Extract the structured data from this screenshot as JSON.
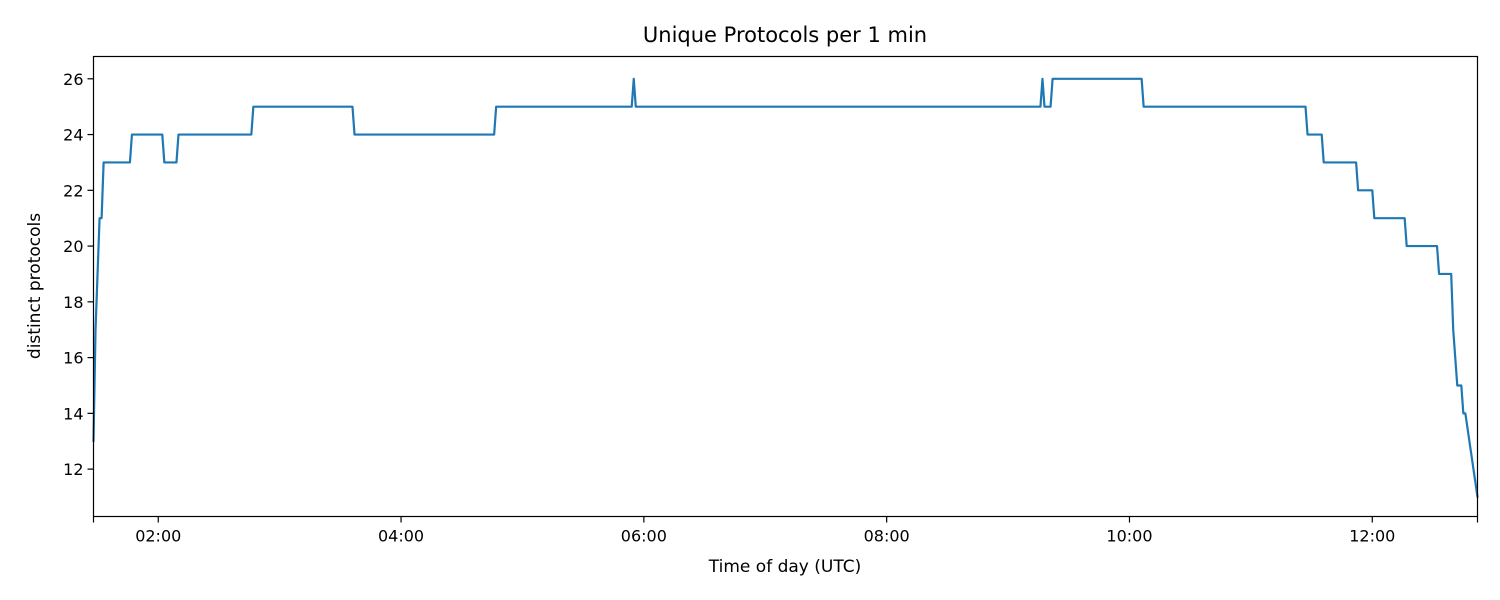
{
  "chart_data": {
    "type": "line",
    "title": "Unique Protocols per 1 min",
    "xlabel": "Time of day (UTC)",
    "ylabel": "distinct protocols",
    "x_unit": "time of day (UTC)",
    "xlim": [
      "01:28",
      "12:52"
    ],
    "ylim": [
      10.3,
      26.8
    ],
    "x_ticks": [
      "01:28",
      "02:00",
      "04:00",
      "06:00",
      "08:00",
      "10:00",
      "12:00",
      "12:52"
    ],
    "x_tick_labels": [
      "",
      "02:00",
      "04:00",
      "06:00",
      "08:00",
      "10:00",
      "12:00",
      ""
    ],
    "y_ticks": [
      12,
      14,
      16,
      18,
      20,
      22,
      24,
      26
    ],
    "y_tick_labels": [
      "12",
      "14",
      "16",
      "18",
      "20",
      "22",
      "24",
      "26"
    ],
    "grid": false,
    "colors": {
      "series": "#1f77b4",
      "axes": "#000000",
      "background": "#ffffff"
    },
    "series": [
      {
        "x": [
          "01:28",
          "01:29",
          "01:30",
          "01:31",
          "01:32",
          "01:33",
          "01:34",
          "01:35",
          "01:46",
          "01:47",
          "02:02",
          "02:03",
          "02:09",
          "02:10",
          "02:46",
          "02:47",
          "03:36",
          "03:37",
          "04:46",
          "04:47",
          "05:54",
          "05:55",
          "05:56",
          "09:16",
          "09:17",
          "09:18",
          "09:21",
          "09:22",
          "10:06",
          "10:07",
          "11:27",
          "11:28",
          "11:35",
          "11:36",
          "11:52",
          "11:53",
          "12:00",
          "12:01",
          "12:16",
          "12:17",
          "12:32",
          "12:33",
          "12:39",
          "12:40",
          "12:41",
          "12:42",
          "12:44",
          "12:45",
          "12:46",
          "12:52"
        ],
        "y": [
          13,
          17,
          19,
          21,
          21,
          23,
          23,
          23,
          23,
          24,
          24,
          23,
          23,
          24,
          24,
          25,
          25,
          24,
          24,
          25,
          25,
          26,
          25,
          25,
          26,
          25,
          25,
          26,
          26,
          25,
          25,
          24,
          24,
          23,
          23,
          22,
          22,
          21,
          21,
          20,
          20,
          19,
          19,
          17,
          16,
          15,
          15,
          14,
          14,
          11
        ]
      }
    ]
  }
}
